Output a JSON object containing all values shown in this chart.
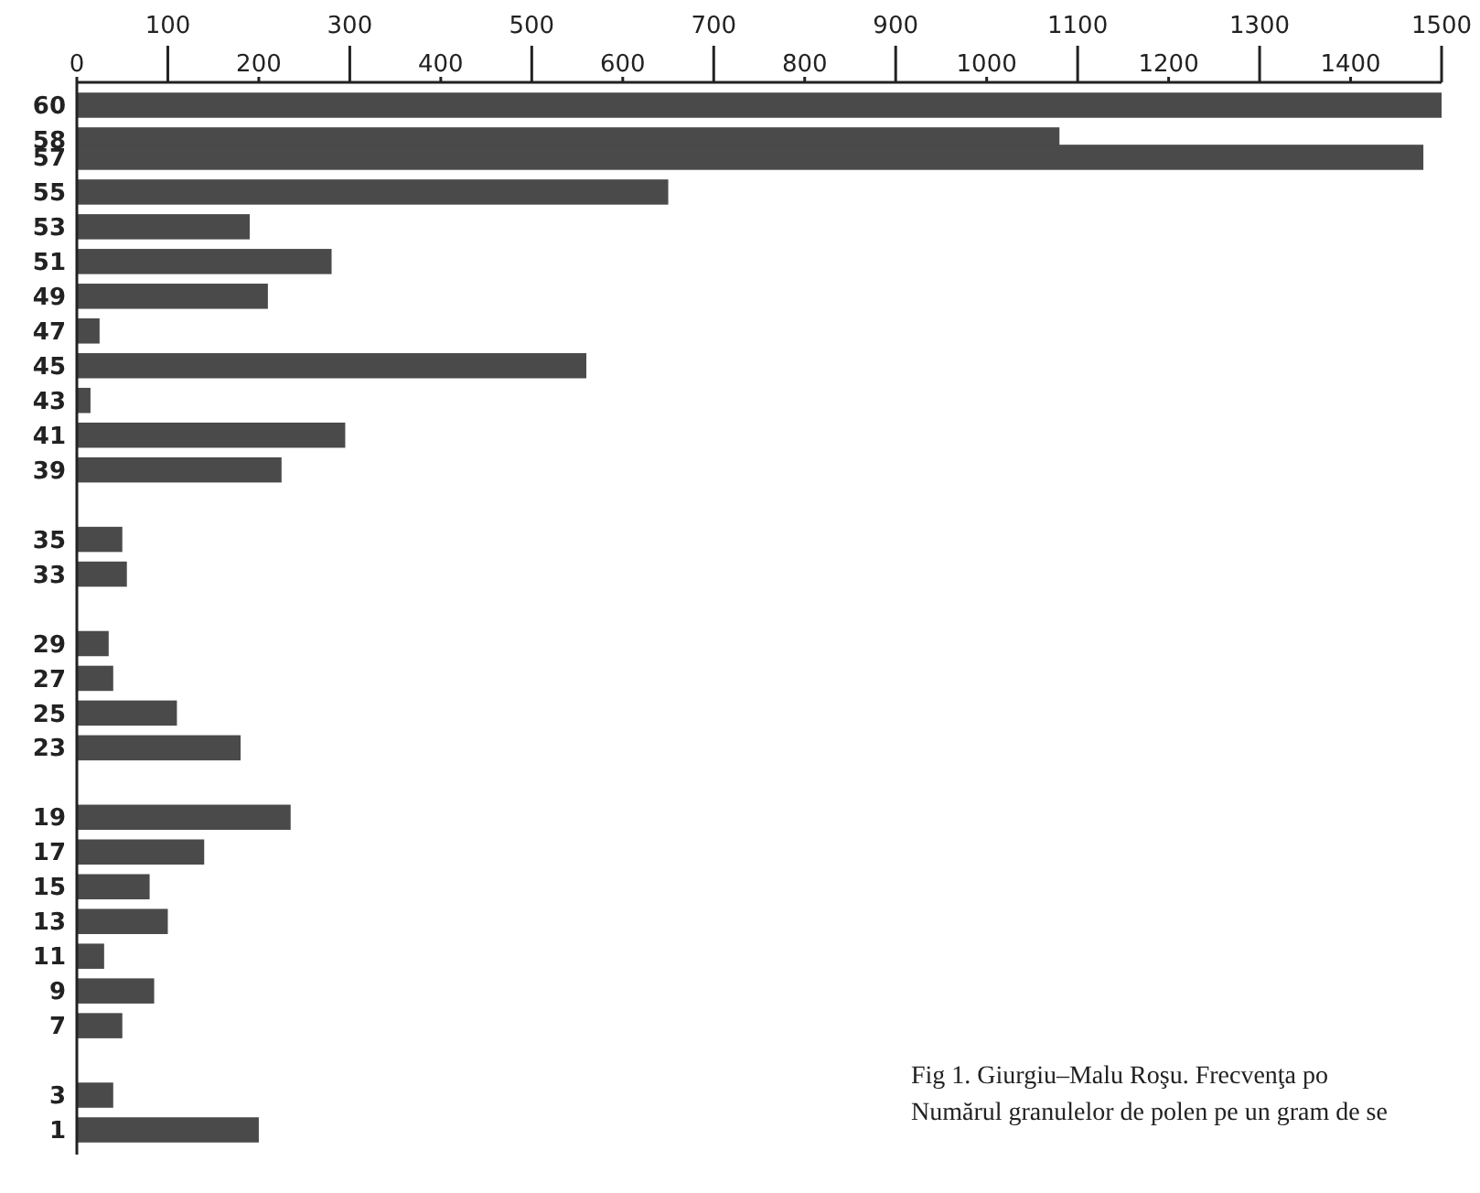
{
  "chart_data": {
    "type": "bar",
    "orientation": "horizontal",
    "x": [
      60,
      58,
      57,
      55,
      53,
      51,
      49,
      47,
      45,
      43,
      41,
      39,
      35,
      33,
      29,
      27,
      25,
      23,
      19,
      17,
      15,
      13,
      11,
      9,
      7,
      3,
      1
    ],
    "values": [
      1500,
      1080,
      1480,
      650,
      190,
      280,
      210,
      25,
      560,
      15,
      295,
      225,
      50,
      55,
      35,
      40,
      110,
      180,
      235,
      140,
      80,
      100,
      30,
      85,
      50,
      40,
      200
    ],
    "color": "#4a4a4a",
    "xlim": [
      0,
      1500
    ],
    "xticks": [
      0,
      200,
      400,
      600,
      800,
      1000,
      1200,
      1400
    ],
    "x2lim": [
      0,
      1500
    ],
    "x2ticks": [
      100,
      300,
      500,
      700,
      900,
      1100,
      1300,
      1500
    ],
    "ylim": [
      0,
      61
    ],
    "yticks": [
      60,
      58,
      57,
      55,
      53,
      51,
      49,
      47,
      45,
      43,
      41,
      39,
      35,
      33,
      29,
      27,
      25,
      23,
      19,
      17,
      15,
      13,
      11,
      9,
      7,
      3,
      1
    ],
    "grid": false,
    "annotations": [
      "Fig 1. Giurgiu–Malu Roşu. Frecvenţa po",
      "Numărul granulelor de polen pe un gram de se"
    ]
  }
}
